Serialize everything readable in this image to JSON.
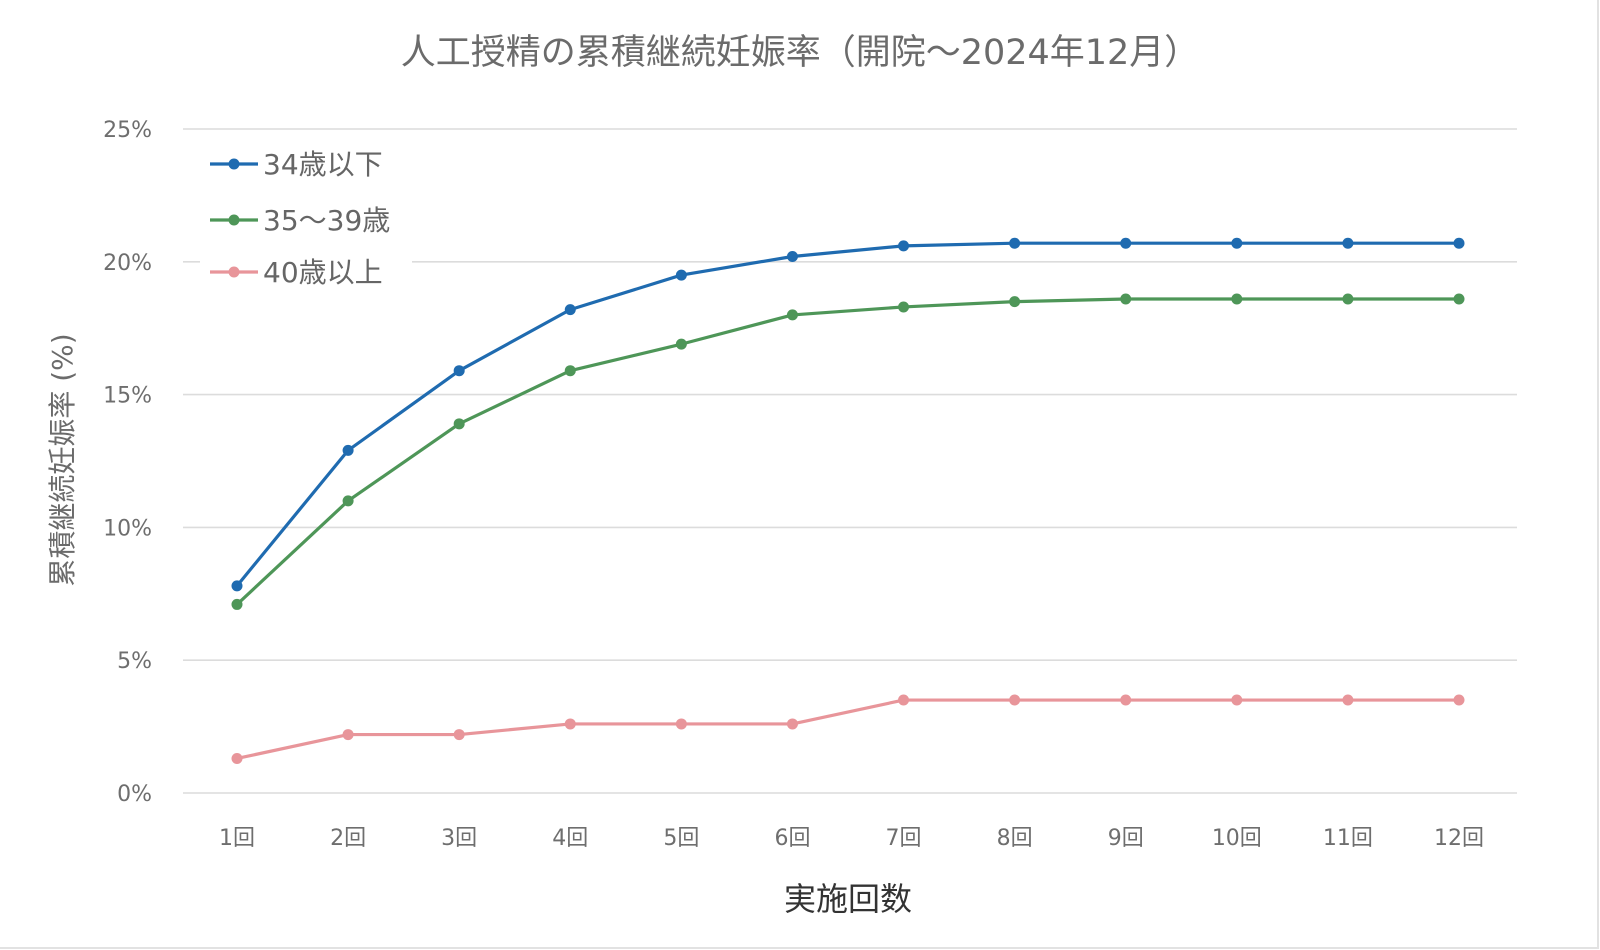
{
  "chart_data": {
    "type": "line",
    "title": "人工授精の累積継続妊娠率（開院〜2024年12月）",
    "xlabel": "実施回数",
    "ylabel": "累積継続妊娠率 (%)",
    "categories": [
      "1回",
      "2回",
      "3回",
      "4回",
      "5回",
      "6回",
      "7回",
      "8回",
      "9回",
      "10回",
      "11回",
      "12回"
    ],
    "ylim": [
      0,
      25
    ],
    "yticks": [
      0,
      5,
      10,
      15,
      20,
      25
    ],
    "ytick_labels": [
      "0%",
      "5%",
      "10%",
      "15%",
      "20%",
      "25%"
    ],
    "grid": true,
    "legend_position": "top-left",
    "series": [
      {
        "name": "34歳以下",
        "color": "#1f6bb0",
        "values": [
          7.8,
          12.9,
          15.9,
          18.2,
          19.5,
          20.2,
          20.6,
          20.7,
          20.7,
          20.7,
          20.7,
          20.7
        ]
      },
      {
        "name": "35〜39歳",
        "color": "#4e9658",
        "values": [
          7.1,
          11.0,
          13.9,
          15.9,
          16.9,
          18.0,
          18.3,
          18.5,
          18.6,
          18.6,
          18.6,
          18.6
        ]
      },
      {
        "name": "40歳以上",
        "color": "#e8959a",
        "values": [
          1.3,
          2.2,
          2.2,
          2.6,
          2.6,
          2.6,
          3.5,
          3.5,
          3.5,
          3.5,
          3.5,
          3.5
        ]
      }
    ]
  }
}
